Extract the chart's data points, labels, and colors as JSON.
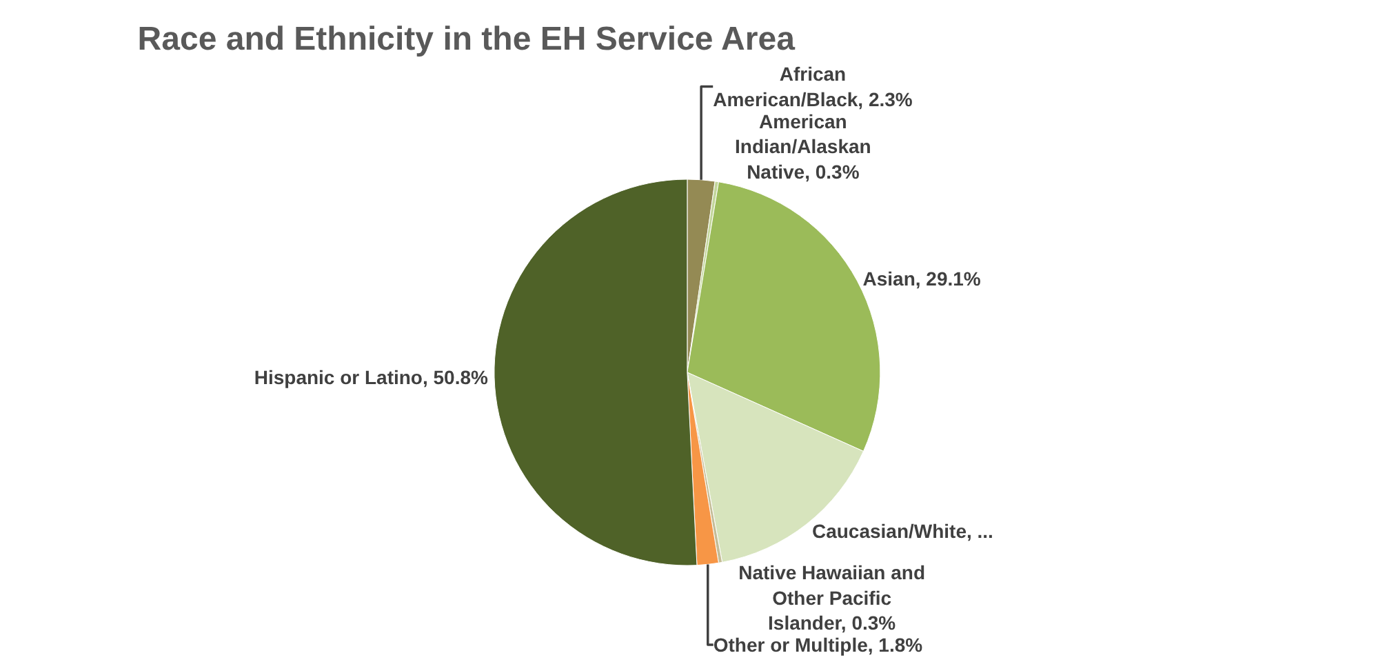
{
  "chart_data": {
    "type": "pie",
    "title": "Race and Ethnicity in the EH Service Area",
    "categories": [
      "African American/Black",
      "American Indian/Alaskan Native",
      "Asian",
      "Caucasian/White",
      "Native Hawaiian and Other Pacific Islander",
      "Other or Multiple",
      "Hispanic or Latino"
    ],
    "values": [
      2.3,
      0.3,
      29.1,
      15.4,
      0.3,
      1.8,
      50.8
    ],
    "colors": [
      "#948a54",
      "#c3d69b",
      "#9bbb59",
      "#d7e4bd",
      "#c4bd97",
      "#f79646",
      "#4f6228"
    ],
    "value_labels": [
      "2.3%",
      "0.3%",
      "29.1%",
      "...",
      "0.3%",
      "1.8%",
      "50.8%"
    ],
    "legend": false
  }
}
